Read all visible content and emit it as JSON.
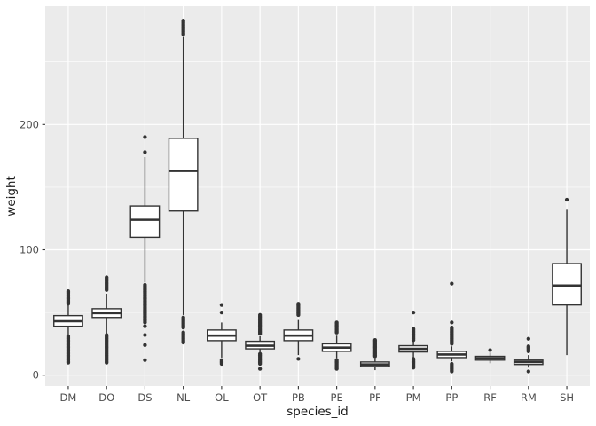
{
  "chart_data": {
    "type": "boxplot",
    "title": "",
    "xlabel": "species_id",
    "ylabel": "weight",
    "categories": [
      "DM",
      "DO",
      "DS",
      "NL",
      "OL",
      "OT",
      "PB",
      "PE",
      "PF",
      "PM",
      "PP",
      "RF",
      "RM",
      "SH"
    ],
    "y_ticks": [
      0,
      100,
      200
    ],
    "y_minor_ticks": [
      50,
      150,
      250
    ],
    "ylim": [
      -8.7,
      294.4
    ],
    "grid": "on",
    "legend": "none",
    "boxes": [
      {
        "id": "DM",
        "whisker_low": 31.5,
        "q1": 39,
        "median": 43,
        "q3": 47.5,
        "whisker_high": 56,
        "outliers": [
          10,
          11,
          12,
          13,
          14,
          15,
          16,
          17,
          18,
          19,
          20,
          21,
          22,
          23,
          24,
          25,
          26,
          27,
          28,
          29,
          30,
          31,
          57,
          58,
          59,
          60,
          61,
          62,
          63,
          64,
          65,
          66,
          67
        ]
      },
      {
        "id": "DO",
        "whisker_low": 33,
        "q1": 46,
        "median": 49.5,
        "q3": 53,
        "whisker_high": 65,
        "outliers": [
          10,
          11,
          12,
          13,
          14,
          15,
          16,
          17,
          18,
          19,
          20,
          21,
          22,
          23,
          24,
          25,
          26,
          27,
          28,
          29,
          30,
          31,
          32,
          68,
          69,
          70,
          71,
          72,
          73,
          74,
          75,
          76,
          77,
          78
        ]
      },
      {
        "id": "DS",
        "whisker_low": 74,
        "q1": 110,
        "median": 124,
        "q3": 135,
        "whisker_high": 174,
        "outliers": [
          12,
          24,
          32,
          39,
          42,
          43,
          44,
          45,
          46,
          47,
          48,
          49,
          50,
          51,
          52,
          53,
          54,
          55,
          56,
          57,
          58,
          59,
          60,
          61,
          62,
          63,
          64,
          65,
          66,
          67,
          68,
          69,
          70,
          71,
          72,
          178,
          190
        ]
      },
      {
        "id": "NL",
        "whisker_low": 48,
        "q1": 131,
        "median": 163,
        "q3": 189,
        "whisker_high": 270,
        "outliers": [
          26,
          27,
          28,
          29,
          30,
          31,
          32,
          33,
          34,
          38,
          39,
          40,
          41,
          42,
          43,
          44,
          45,
          46,
          272,
          273,
          274,
          275,
          276,
          277,
          278,
          279,
          280,
          281,
          282,
          283
        ]
      },
      {
        "id": "OL",
        "whisker_low": 14,
        "q1": 27.5,
        "median": 31.5,
        "q3": 36,
        "whisker_high": 42,
        "outliers": [
          9,
          10,
          11,
          12,
          50,
          56
        ]
      },
      {
        "id": "OT",
        "whisker_low": 18.5,
        "q1": 21,
        "median": 23.5,
        "q3": 27,
        "whisker_high": 31,
        "outliers": [
          5,
          9,
          10,
          11,
          12,
          13,
          14,
          15,
          16,
          17,
          33,
          34,
          35,
          36,
          37,
          38,
          39,
          40,
          41,
          42,
          43,
          44,
          45,
          46,
          47,
          48
        ]
      },
      {
        "id": "PB",
        "whisker_low": 16,
        "q1": 27.5,
        "median": 31.5,
        "q3": 36,
        "whisker_high": 44,
        "outliers": [
          13,
          48,
          49,
          50,
          51,
          52,
          53,
          54,
          55,
          56,
          57
        ]
      },
      {
        "id": "PE",
        "whisker_low": 13.5,
        "q1": 19,
        "median": 22,
        "q3": 25,
        "whisker_high": 31.5,
        "outliers": [
          5,
          6,
          7,
          8,
          9,
          10,
          11,
          12,
          34,
          35,
          36,
          37,
          38,
          39,
          40,
          41,
          42
        ]
      },
      {
        "id": "PF",
        "whisker_low": 4,
        "q1": 7,
        "median": 8.5,
        "q3": 10.5,
        "whisker_high": 13.5,
        "outliers": [
          15,
          16,
          17,
          18,
          19,
          20,
          21,
          22,
          23,
          24,
          25,
          26,
          27,
          28
        ]
      },
      {
        "id": "PM",
        "whisker_low": 14,
        "q1": 18.5,
        "median": 21,
        "q3": 23.5,
        "whisker_high": 27,
        "outliers": [
          6,
          7,
          8,
          9,
          10,
          11,
          12,
          13,
          28,
          29,
          30,
          31,
          32,
          33,
          34,
          35,
          36,
          37,
          50
        ]
      },
      {
        "id": "PP",
        "whisker_low": 11,
        "q1": 14,
        "median": 16.5,
        "q3": 19,
        "whisker_high": 23,
        "outliers": [
          3,
          4,
          5,
          6,
          7,
          8,
          9,
          25,
          26,
          27,
          28,
          29,
          30,
          31,
          32,
          33,
          34,
          35,
          36,
          37,
          38,
          42,
          73
        ]
      },
      {
        "id": "RF",
        "whisker_low": 9.5,
        "q1": 12,
        "median": 13.5,
        "q3": 15,
        "whisker_high": 18,
        "outliers": [
          20
        ]
      },
      {
        "id": "RM",
        "whisker_low": 6,
        "q1": 8.5,
        "median": 10.5,
        "q3": 12,
        "whisker_high": 16,
        "outliers": [
          3,
          19,
          20,
          21,
          22,
          23,
          29
        ]
      },
      {
        "id": "SH",
        "whisker_low": 16,
        "q1": 56,
        "median": 71.5,
        "q3": 89,
        "whisker_high": 132,
        "outliers": [
          140
        ]
      }
    ],
    "style": {
      "background": "#FFFFFF",
      "panel_bg": "#EBEBEB",
      "grid_color": "#FFFFFF",
      "box_fill": "#FFFFFF",
      "box_stroke": "#333333",
      "outlier_color": "#333333",
      "tick_color": "#333333",
      "tick_label_color": "#4D4D4D",
      "axis_title_color": "#1A1A1A"
    }
  }
}
